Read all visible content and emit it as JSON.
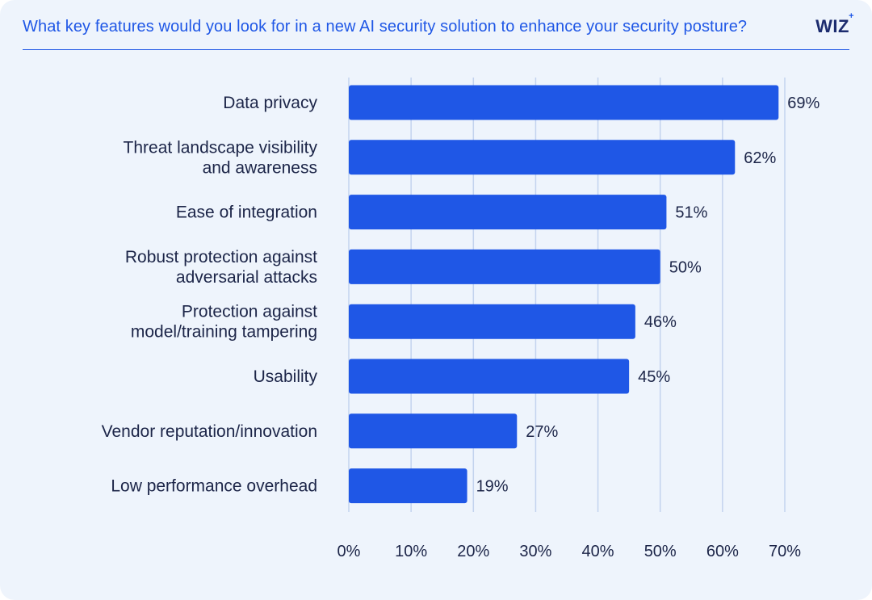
{
  "header": {
    "title": "What key features would you look for in a new AI security solution to enhance your security posture?",
    "logo_text": "WIZ",
    "logo_star": "+"
  },
  "colors": {
    "background": "#eef4fc",
    "bar": "#1f57e6",
    "title": "#1f57e6",
    "text": "#1c2548",
    "grid": "#c3d3ee"
  },
  "chart_data": {
    "type": "bar",
    "orientation": "horizontal",
    "categories": [
      [
        "Data privacy"
      ],
      [
        "Threat landscape visibility",
        "and awareness"
      ],
      [
        "Ease of integration"
      ],
      [
        "Robust protection against",
        "adversarial attacks"
      ],
      [
        "Protection against",
        "model/training tampering"
      ],
      [
        "Usability"
      ],
      [
        "Vendor reputation/innovation"
      ],
      [
        "Low performance overhead"
      ]
    ],
    "values": [
      69,
      62,
      51,
      50,
      46,
      45,
      27,
      19
    ],
    "value_labels": [
      "69%",
      "62%",
      "51%",
      "50%",
      "46%",
      "45%",
      "27%",
      "19%"
    ],
    "xlim": [
      0,
      70
    ],
    "xticks": [
      0,
      10,
      20,
      30,
      40,
      50,
      60,
      70
    ],
    "xtick_labels": [
      "0%",
      "10%",
      "20%",
      "30%",
      "40%",
      "50%",
      "60%",
      "70%"
    ],
    "grid": true
  }
}
